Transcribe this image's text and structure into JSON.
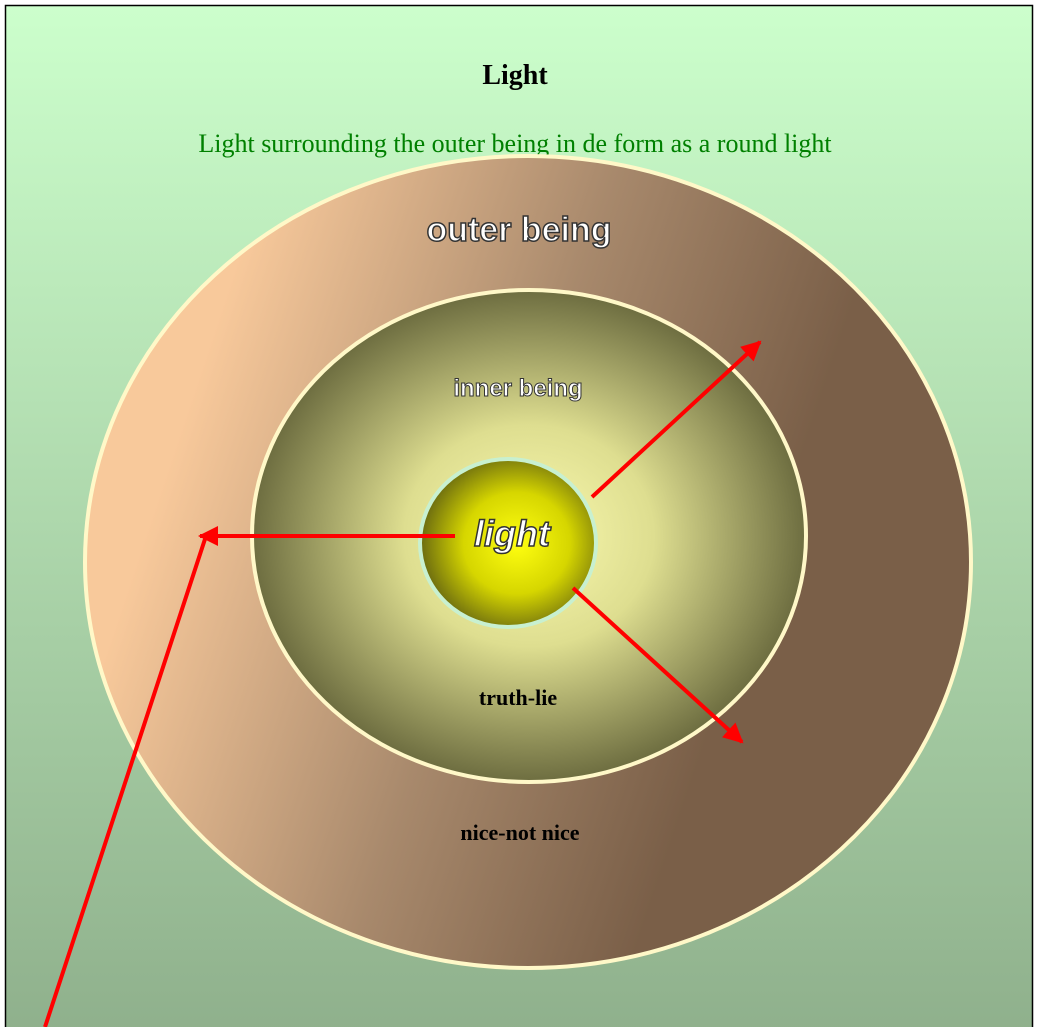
{
  "title": "Light",
  "subtitle": "Light surrounding the outer being in de form as a round light",
  "rings": {
    "outer": "outer being",
    "inner": "inner being",
    "core": "light"
  },
  "labels": {
    "inner_bottom": "truth-lie",
    "outer_bottom": "nice-not nice"
  }
}
